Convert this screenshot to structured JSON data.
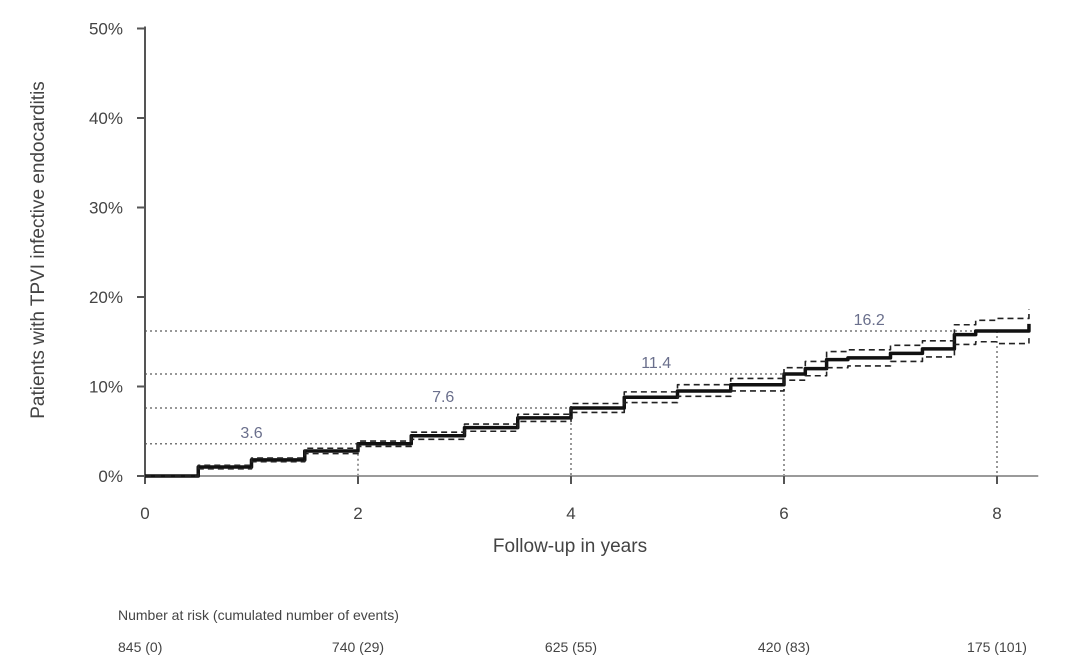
{
  "chart_data": {
    "type": "line",
    "xlabel": "Follow-up in years",
    "ylabel": "Patients with TPVI infective endocarditis",
    "xlim": [
      0,
      8.35
    ],
    "ylim": [
      0,
      50
    ],
    "x_ticks": [
      0,
      2,
      4,
      6,
      8
    ],
    "x_tick_labels": [
      "0",
      "2",
      "4",
      "6",
      "8"
    ],
    "y_ticks": [
      0,
      10,
      20,
      30,
      40,
      50
    ],
    "y_tick_labels": [
      "0%",
      "10%",
      "20%",
      "30%",
      "40%",
      "50%"
    ],
    "grid": false,
    "series": [
      {
        "role": "estimate",
        "style": "solid",
        "x": [
          0,
          0.5,
          1.0,
          1.5,
          2.0,
          2.5,
          3.0,
          3.5,
          4.0,
          4.5,
          5.0,
          5.5,
          6.0,
          6.2,
          6.4,
          6.6,
          7.0,
          7.3,
          7.6,
          7.8,
          8.0,
          8.3
        ],
        "y": [
          0,
          1.0,
          1.8,
          2.8,
          3.6,
          4.5,
          5.4,
          6.5,
          7.6,
          8.8,
          9.5,
          10.2,
          11.4,
          12.0,
          13.0,
          13.2,
          13.7,
          14.2,
          15.8,
          16.2,
          16.2,
          17.0
        ]
      },
      {
        "role": "upper-ci",
        "style": "dashed",
        "x": [
          0,
          0.5,
          1.0,
          1.5,
          2.0,
          2.5,
          3.0,
          3.5,
          4.0,
          4.5,
          5.0,
          5.5,
          6.0,
          6.2,
          6.4,
          6.6,
          7.0,
          7.3,
          7.6,
          7.8,
          8.0,
          8.3
        ],
        "y": [
          0,
          1.2,
          2.0,
          3.1,
          3.9,
          4.9,
          5.8,
          6.9,
          8.1,
          9.4,
          10.2,
          10.9,
          12.1,
          12.8,
          13.9,
          14.1,
          14.6,
          15.1,
          16.9,
          17.4,
          17.6,
          18.6
        ]
      },
      {
        "role": "lower-ci",
        "style": "dashed",
        "x": [
          0,
          0.5,
          1.0,
          1.5,
          2.0,
          2.5,
          3.0,
          3.5,
          4.0,
          4.5,
          5.0,
          5.5,
          6.0,
          6.2,
          6.4,
          6.6,
          7.0,
          7.3,
          7.6,
          7.8,
          8.0,
          8.3
        ],
        "y": [
          0,
          0.8,
          1.6,
          2.5,
          3.3,
          4.1,
          5.0,
          6.1,
          7.1,
          8.2,
          8.9,
          9.5,
          10.7,
          11.2,
          12.1,
          12.3,
          12.8,
          13.3,
          14.7,
          15.0,
          14.8,
          15.4
        ]
      }
    ],
    "annotations": [
      {
        "x": 2,
        "y": 3.6,
        "label": "3.6",
        "label_x": 1.0
      },
      {
        "x": 4,
        "y": 7.6,
        "label": "7.6",
        "label_x": 2.8
      },
      {
        "x": 6,
        "y": 11.4,
        "label": "11.4",
        "label_x": 4.8
      },
      {
        "x": 8,
        "y": 16.2,
        "label": "16.2",
        "label_x": 6.8
      }
    ],
    "risk_table": {
      "title": "Number at risk (cumulated number of events)",
      "values": [
        "845 (0)",
        "740 (29)",
        "625 (55)",
        "420 (83)",
        "175 (101)"
      ]
    }
  }
}
